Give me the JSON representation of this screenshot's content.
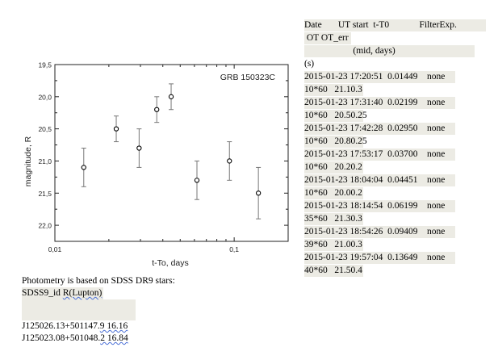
{
  "chart_data": {
    "type": "scatter",
    "title": "GRB 150323C",
    "xlabel": "t-To, days",
    "ylabel": "magnitude, R",
    "xscale": "log",
    "xlim": [
      0.01,
      0.2
    ],
    "ylim": [
      22.25,
      19.5
    ],
    "y_inverted": true,
    "x_ticks": [
      "0,01",
      "0,1"
    ],
    "y_ticks": [
      "19,5",
      "20,0",
      "20,5",
      "21,0",
      "21,5",
      "22,0"
    ],
    "grid": false,
    "x": [
      0.01449,
      0.02199,
      0.0295,
      0.037,
      0.04451,
      0.06199,
      0.09409,
      0.13649
    ],
    "y": [
      21.1,
      20.5,
      20.8,
      20.2,
      20.0,
      21.3,
      21.0,
      21.5
    ],
    "err": [
      0.3,
      0.2,
      0.3,
      0.2,
      0.2,
      0.3,
      0.3,
      0.4
    ],
    "marker_color": "#000000",
    "errbar_color": "#777777"
  },
  "table": {
    "header1": "Date       UT start  t-T0             FilterExp.",
    "header2": " OT OT_err",
    "header3": "                     (mid, days)",
    "header4": "(s)",
    "rows": [
      {
        "line1": "2015-01-23 17:20:51  0.01449    none",
        "line2": "10*60   21.10.3"
      },
      {
        "line1": "2015-01-23 17:31:40  0.02199    none",
        "line2": "10*60   20.50.25"
      },
      {
        "line1": "2015-01-23 17:42:28  0.02950    none",
        "line2": "10*60   20.80.25"
      },
      {
        "line1": "2015-01-23 17:53:17  0.03700    none",
        "line2": "10*60   20.20.2"
      },
      {
        "line1": "2015-01-23 18:04:04  0.04451    none",
        "line2": "10*60   20.00.2"
      },
      {
        "line1": "2015-01-23 18:14:54  0.06199    none",
        "line2": "35*60   21.30.3"
      },
      {
        "line1": "2015-01-23 18:54:26  0.09409    none",
        "line2": "39*60   21.00.3"
      },
      {
        "line1": "2015-01-23 19:57:04  0.13649    none",
        "line2": "40*60   21.50.4"
      }
    ]
  },
  "notes": {
    "line1": "Photometry is based on SDSS DR9 stars:",
    "line2_a": "SDSS9_id ",
    "line2_b": "R(Lupton)",
    "star1_a": "J125026.13+501147.",
    "star1_b": "9 16.16",
    "star2_a": "J125023.08+501048.",
    "star2_b": "2 16.84"
  }
}
